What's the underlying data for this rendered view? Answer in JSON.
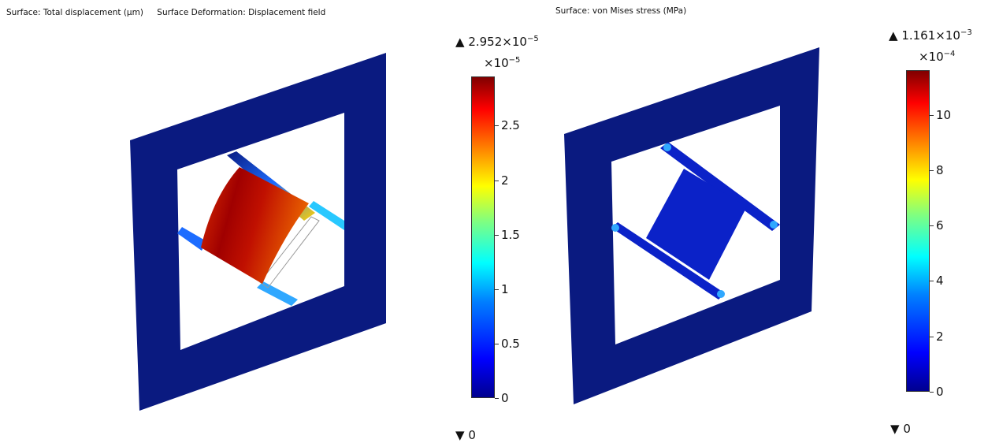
{
  "left_plot": {
    "titles": [
      "Surface: Total displacement (µm)",
      "Surface Deformation: Displacement field"
    ],
    "max_marker": {
      "arrow": "▲",
      "mantissa": "2.952×10",
      "exponent": "−5"
    },
    "min_marker": {
      "arrow": "▼",
      "value": "0"
    },
    "multiplier": {
      "base": "×10",
      "exponent": "−5"
    },
    "colorbar_ticks": [
      "0",
      "0.5",
      "1",
      "1.5",
      "2",
      "2.5"
    ],
    "colorbar_tick_values": [
      0,
      0.5,
      1,
      1.5,
      2,
      2.5
    ],
    "colorbar_max": 2.952
  },
  "right_plot": {
    "titles": [
      "Surface: von Mises stress (MPa)"
    ],
    "max_marker": {
      "arrow": "▲",
      "mantissa": "1.161×10",
      "exponent": "−3"
    },
    "min_marker": {
      "arrow": "▼",
      "value": "0"
    },
    "multiplier": {
      "base": "×10",
      "exponent": "−4"
    },
    "colorbar_ticks": [
      "0",
      "2",
      "4",
      "6",
      "8",
      "10"
    ],
    "colorbar_tick_values": [
      0,
      2,
      4,
      6,
      8,
      10
    ],
    "colorbar_max": 11.61
  },
  "colors": {
    "frame": "#0a1a80",
    "low_stress": "#0b22c8",
    "jet": [
      "#00008f",
      "#0000ff",
      "#0080ff",
      "#00ffff",
      "#80ff80",
      "#ffff00",
      "#ff8000",
      "#ff0000",
      "#800000"
    ]
  }
}
